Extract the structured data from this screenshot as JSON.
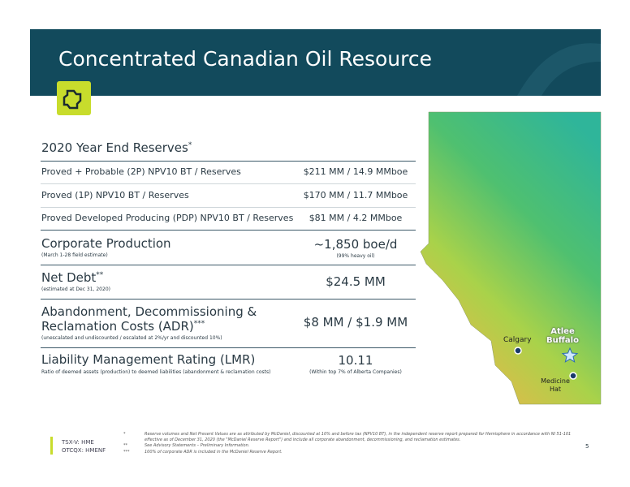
{
  "header": {
    "title": "Concentrated Canadian Oil Resource"
  },
  "reserves": {
    "title": "2020 Year End Reserves",
    "title_mark": "*",
    "rows": [
      {
        "label": "Proved + Probable (2P) NPV10 BT / Reserves",
        "value": "$211 MM  / 14.9 MMboe"
      },
      {
        "label": "Proved (1P) NPV10 BT / Reserves",
        "value": "$170 MM  / 11.7 MMboe"
      },
      {
        "label": "Proved Developed Producing (PDP) NPV10 BT / Reserves",
        "value": "$81 MM  / 4.2 MMboe"
      }
    ]
  },
  "metrics": [
    {
      "title": [
        "Corporate Production"
      ],
      "note": "(March 1-28 field estimate)",
      "value": "~1,850 boe/d",
      "value_note": "(99% heavy oil)"
    },
    {
      "title": [
        "Net Debt"
      ],
      "title_mark": "**",
      "note": "(estimated at Dec 31, 2020)",
      "value": "$24.5 MM"
    },
    {
      "title": [
        "Abandonment, Decommissioning &",
        "Reclamation Costs (ADR)"
      ],
      "title_mark": "***",
      "note": "(unescalated and undiscounted / escalated at 2%/yr and discounted 10%)",
      "value": "$8 MM / $1.9 MM"
    },
    {
      "title": [
        "Liability Management Rating (LMR)"
      ],
      "note": "Ratio of deemed assets (production) to deemed liabilities (abandonment & reclamation costs)",
      "value": "10.11",
      "value_note": "(Within top 7% of Alberta Companies)"
    }
  ],
  "map": {
    "calgary": "Calgary",
    "atlee_buffalo": [
      "Atlee",
      "Buffalo"
    ],
    "medicine_hat": [
      "Medicine",
      "Hat"
    ]
  },
  "footer": {
    "tickers": [
      "TSX-V: HME",
      "OTCQX: HMENF"
    ],
    "footnotes": [
      {
        "marker": "*",
        "text": "Reserve volumes and Net Present Values are as attributed by McDaniel, discounted at 10% and before tax (NPV10 BT), in the independent reserve report prepared for Hemisphere in accordance with NI 51-101 effective as of December 31, 2020 (the \"McDaniel Reserve Report\") and include all corporate abandonment, decommissioning, and reclamation estimates."
      },
      {
        "marker": "**",
        "text": "See Advisory Statements – Preliminary Information."
      },
      {
        "marker": "***",
        "text": "100% of corporate ADR is included in the McDaniel Reserve Report."
      }
    ],
    "page": "5"
  }
}
